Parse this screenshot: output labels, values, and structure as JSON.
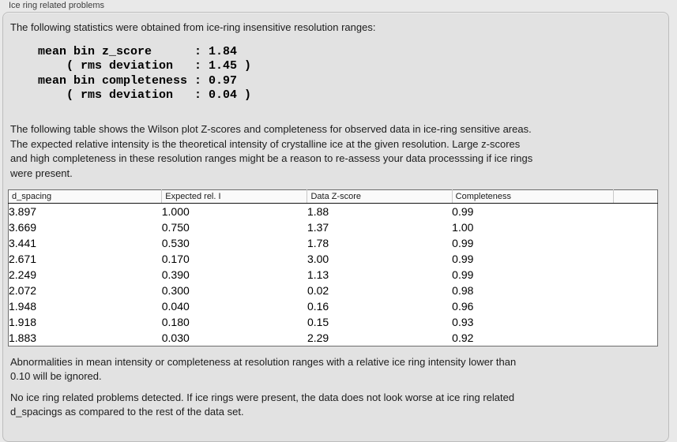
{
  "panel": {
    "title": "Ice ring related problems"
  },
  "intro_paragraph": "The following statistics were obtained from ice-ring insensitive resolution ranges:",
  "summary_stats": {
    "lines": [
      "mean bin z_score      : 1.84",
      "    ( rms deviation   : 1.45 )",
      "mean bin completeness : 0.97",
      "    ( rms deviation   : 0.04 )"
    ]
  },
  "table_description": {
    "lines": [
      "The following table shows the Wilson plot Z-scores and completeness for observed data in ice-ring sensitive areas.",
      "The expected relative intensity is the theoretical intensity of crystalline ice at the given resolution. Large z-scores",
      "and high completeness in these resolution ranges might be a reason to re-assess your data processsing if ice rings",
      "were present."
    ]
  },
  "ice_ring_table": {
    "columns": [
      "d_spacing",
      "Expected rel. I",
      "Data Z-score",
      "Completeness"
    ],
    "rows": [
      [
        "3.897",
        "1.000",
        "1.88",
        "0.99"
      ],
      [
        "3.669",
        "0.750",
        "1.37",
        "1.00"
      ],
      [
        "3.441",
        "0.530",
        "1.78",
        "0.99"
      ],
      [
        "2.671",
        "0.170",
        "3.00",
        "0.99"
      ],
      [
        "2.249",
        "0.390",
        "1.13",
        "0.99"
      ],
      [
        "2.072",
        "0.300",
        "0.02",
        "0.98"
      ],
      [
        "1.948",
        "0.040",
        "0.16",
        "0.96"
      ],
      [
        "1.918",
        "0.180",
        "0.15",
        "0.93"
      ],
      [
        "1.883",
        "0.030",
        "2.29",
        "0.92"
      ]
    ]
  },
  "notes": {
    "ignore_threshold": {
      "lines": [
        "Abnormalities in mean intensity or completeness at resolution ranges with a relative ice ring intensity lower than",
        "0.10 will be ignored."
      ]
    },
    "conclusion": {
      "lines": [
        "No ice ring related problems detected. If ice rings were present, the data does not look worse at ice ring related",
        "d_spacings as compared to the rest of the data set."
      ]
    }
  },
  "colors": {
    "page_background": "#e9e9e9",
    "panel_background": "#e2e2e2",
    "table_background": "#ffffff",
    "table_border": "#6e6e6e"
  }
}
